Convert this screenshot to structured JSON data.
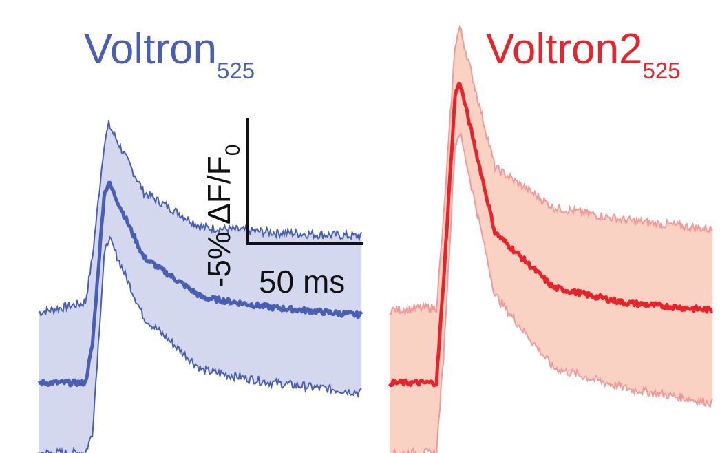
{
  "chart_data": [
    {
      "type": "line",
      "title": "Voltron",
      "title_subscript": "525",
      "color_line": "#4a5fb4",
      "color_band": "#d4d8ef",
      "color_band_edge": "#4a5fb4",
      "x_units": "ms",
      "y_units": "% ΔF/F0 (inverted)",
      "ylim": [
        -11,
        1.5
      ],
      "xlim": [
        0,
        150
      ],
      "key_points": {
        "x": [
          0,
          20,
          23,
          28,
          30,
          45,
          70,
          100,
          150
        ],
        "mean": [
          0,
          0,
          1.5,
          7.5,
          8.0,
          5.0,
          3.4,
          3.0,
          2.6
        ],
        "upper": [
          2.8,
          3.2,
          5.0,
          9.5,
          10.3,
          7.6,
          6.2,
          6.0,
          5.8
        ],
        "lower": [
          -2.8,
          -2.8,
          -2.0,
          5.0,
          5.8,
          2.6,
          0.5,
          0.0,
          -0.5
        ]
      }
    },
    {
      "type": "line",
      "title": "Voltron2",
      "title_subscript": "525",
      "color_line": "#e8242a",
      "color_band": "#fad2c4",
      "color_band_edge": "#f29a9a",
      "x_units": "ms",
      "y_units": "% ΔF/F0 (inverted)",
      "ylim": [
        -11,
        1.5
      ],
      "xlim": [
        0,
        150
      ],
      "key_points": {
        "x": [
          0,
          20,
          23,
          28,
          30,
          45,
          70,
          100,
          150
        ],
        "mean": [
          0,
          0,
          4.0,
          11.5,
          12.0,
          6.0,
          3.8,
          3.2,
          2.8
        ],
        "upper": [
          2.9,
          3.0,
          6.5,
          13.5,
          14.2,
          8.6,
          7.0,
          6.5,
          6.0
        ],
        "lower": [
          -2.8,
          -2.8,
          1.0,
          9.5,
          10.0,
          3.5,
          0.6,
          -0.2,
          -1.0
        ]
      }
    }
  ],
  "scale_bar": {
    "vertical_label": "-5% ΔF/F",
    "vertical_label_subscript": "0",
    "vertical_value_percent": 5,
    "horizontal_label": "50 ms",
    "horizontal_value_ms": 50
  }
}
